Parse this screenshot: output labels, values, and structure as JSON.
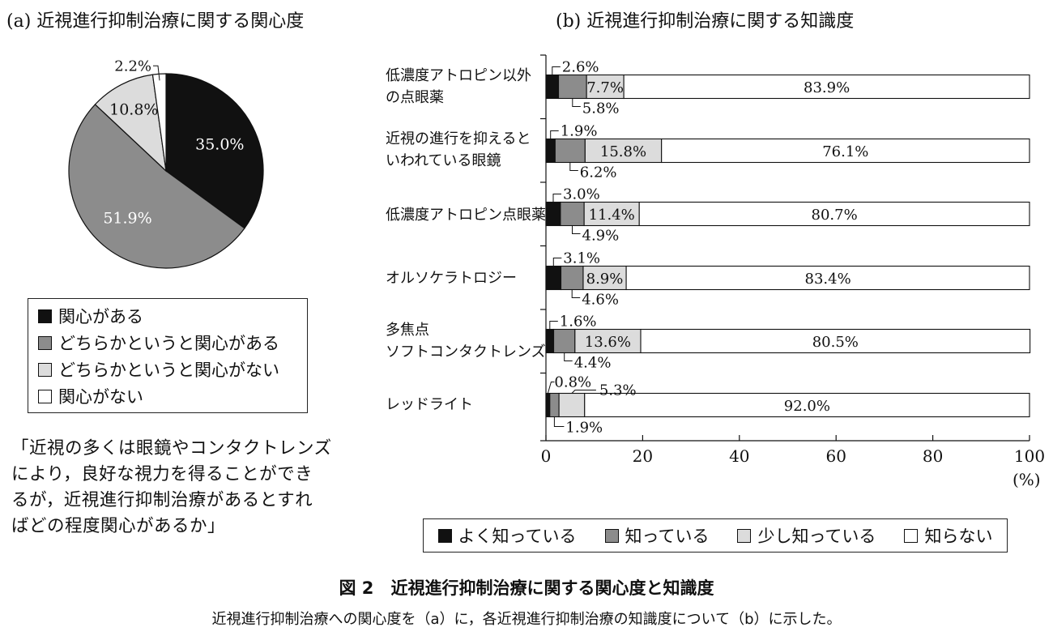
{
  "panel_a": {
    "title": "(a) 近視進行抑制治療に関する関心度",
    "quote": [
      "「近視の多くは眼鏡やコンタクトレンズ",
      "により，良好な視力を得ることができ",
      "るが，近視進行抑制治療があるとすれ",
      "ばどの程度関心があるか」"
    ]
  },
  "panel_b": {
    "title": "(b) 近視進行抑制治療に関する知識度",
    "categories": [
      [
        "低濃度アトロピン以外",
        "の点眼薬"
      ],
      [
        "近視の進行を抑えると",
        "いわれている眼鏡"
      ],
      [
        "低濃度アトロピン点眼薬"
      ],
      [
        "オルソケラトロジー"
      ],
      [
        "多焦点",
        "ソフトコンタクトレンズ"
      ],
      [
        "レッドライト"
      ]
    ],
    "axis_unit": "(%)"
  },
  "caption": {
    "figure_label": "図 2",
    "figure_title": "近視進行抑制治療に関する関心度と知識度",
    "description": "近視進行抑制治療への関心度を（a）に，各近視進行抑制治療の知識度について（b）に示した。"
  },
  "colors": {
    "black": "#111111",
    "gray": "#8c8c8c",
    "light": "#dcdcdc",
    "white": "#ffffff"
  },
  "chart_data": [
    {
      "type": "pie",
      "title": "(a) 近視進行抑制治療に関する関心度",
      "labels": [
        "関心がある",
        "どちらかというと関心がある",
        "どちらかというと関心がない",
        "関心がない"
      ],
      "values": [
        35.0,
        51.9,
        10.8,
        2.2
      ],
      "value_labels": [
        "35.0%",
        "51.9%",
        "10.8%",
        "2.2%"
      ],
      "colors": [
        "#111111",
        "#8c8c8c",
        "#dcdcdc",
        "#ffffff"
      ],
      "legend_position": "bottom"
    },
    {
      "type": "bar",
      "orientation": "horizontal",
      "stacked": true,
      "title": "(b) 近視進行抑制治療に関する知識度",
      "categories": [
        "低濃度アトロピン以外の点眼薬",
        "近視の進行を抑えるといわれている眼鏡",
        "低濃度アトロピン点眼薬",
        "オルソケラトロジー",
        "多焦点ソフトコンタクトレンズ",
        "レッドライト"
      ],
      "series": [
        {
          "name": "よく知っている",
          "values": [
            2.6,
            1.9,
            3.0,
            3.1,
            1.6,
            0.8
          ],
          "color": "#111111"
        },
        {
          "name": "知っている",
          "values": [
            5.8,
            6.2,
            4.9,
            4.6,
            4.4,
            1.9
          ],
          "color": "#8c8c8c"
        },
        {
          "name": "少し知っている",
          "values": [
            7.7,
            15.8,
            11.4,
            8.9,
            13.6,
            5.3
          ],
          "color": "#dcdcdc"
        },
        {
          "name": "知らない",
          "values": [
            83.9,
            76.1,
            80.7,
            83.4,
            80.5,
            92.0
          ],
          "color": "#ffffff"
        }
      ],
      "xlim": [
        0,
        100
      ],
      "xticks": [
        0,
        20,
        40,
        60,
        80,
        100
      ],
      "xlabel": "(%)",
      "legend_position": "bottom"
    }
  ]
}
